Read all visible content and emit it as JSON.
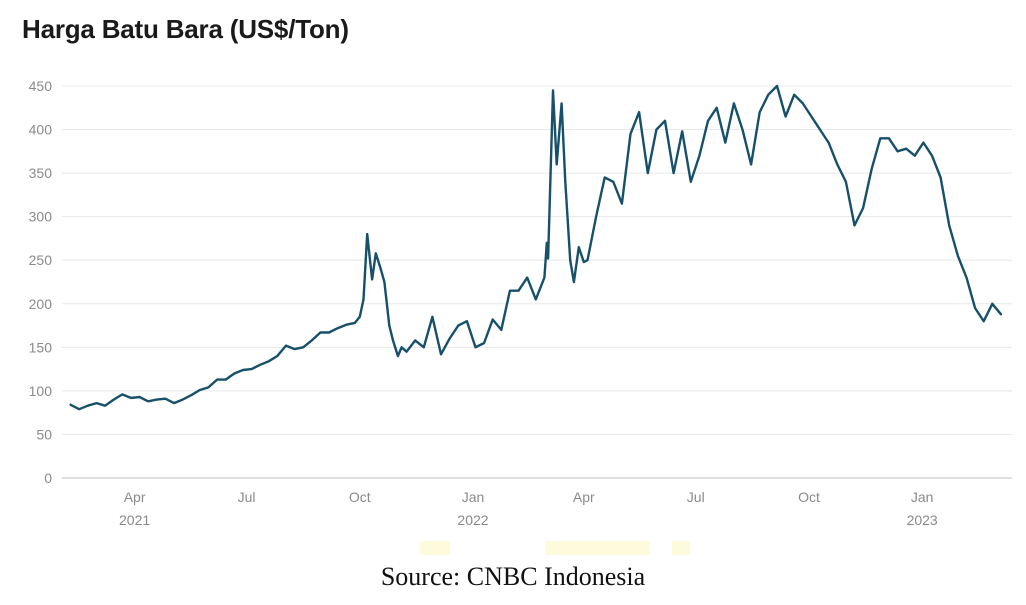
{
  "chart_data": {
    "type": "line",
    "title": "Harga Batu Bara (US$/Ton)",
    "xlabel": "",
    "ylabel": "",
    "ylim": [
      0,
      450
    ],
    "yticks": [
      0,
      50,
      100,
      150,
      200,
      250,
      300,
      350,
      400,
      450
    ],
    "xlim": [
      "2021-02-01",
      "2023-03-15"
    ],
    "xticks": [
      {
        "date": "2021-04-01",
        "label": "Apr",
        "year": "2021"
      },
      {
        "date": "2021-07-01",
        "label": "Jul",
        "year": ""
      },
      {
        "date": "2021-10-01",
        "label": "Oct",
        "year": ""
      },
      {
        "date": "2022-01-01",
        "label": "Jan",
        "year": "2022"
      },
      {
        "date": "2022-04-01",
        "label": "Apr",
        "year": ""
      },
      {
        "date": "2022-07-01",
        "label": "Jul",
        "year": ""
      },
      {
        "date": "2022-10-01",
        "label": "Oct",
        "year": ""
      },
      {
        "date": "2023-01-01",
        "label": "Jan",
        "year": "2023"
      }
    ],
    "grid": true,
    "line_color": "#17506a",
    "series": [
      {
        "x": [
          "2021-02-08",
          "2021-02-15",
          "2021-02-22",
          "2021-03-01",
          "2021-03-08",
          "2021-03-15",
          "2021-03-22",
          "2021-03-29",
          "2021-04-05",
          "2021-04-12",
          "2021-04-19",
          "2021-04-26",
          "2021-05-03",
          "2021-05-10",
          "2021-05-17",
          "2021-05-24",
          "2021-05-31",
          "2021-06-07",
          "2021-06-14",
          "2021-06-21",
          "2021-06-28",
          "2021-07-05",
          "2021-07-12",
          "2021-07-19",
          "2021-07-26",
          "2021-08-02",
          "2021-08-09",
          "2021-08-16",
          "2021-08-23",
          "2021-08-30",
          "2021-09-06",
          "2021-09-13",
          "2021-09-20",
          "2021-09-27",
          "2021-10-01",
          "2021-10-04",
          "2021-10-07",
          "2021-10-11",
          "2021-10-14",
          "2021-10-18",
          "2021-10-21",
          "2021-10-25",
          "2021-10-28",
          "2021-11-01",
          "2021-11-04",
          "2021-11-08",
          "2021-11-15",
          "2021-11-22",
          "2021-11-29",
          "2021-12-06",
          "2021-12-13",
          "2021-12-20",
          "2021-12-27",
          "2022-01-03",
          "2022-01-10",
          "2022-01-17",
          "2022-01-24",
          "2022-01-31",
          "2022-02-07",
          "2022-02-14",
          "2022-02-21",
          "2022-02-28",
          "2022-03-02",
          "2022-03-03",
          "2022-03-07",
          "2022-03-10",
          "2022-03-14",
          "2022-03-17",
          "2022-03-21",
          "2022-03-24",
          "2022-03-28",
          "2022-04-01",
          "2022-04-04",
          "2022-04-11",
          "2022-04-18",
          "2022-04-25",
          "2022-05-02",
          "2022-05-09",
          "2022-05-16",
          "2022-05-23",
          "2022-05-30",
          "2022-06-06",
          "2022-06-13",
          "2022-06-20",
          "2022-06-27",
          "2022-07-04",
          "2022-07-11",
          "2022-07-18",
          "2022-07-25",
          "2022-08-01",
          "2022-08-08",
          "2022-08-15",
          "2022-08-22",
          "2022-08-29",
          "2022-09-05",
          "2022-09-12",
          "2022-09-19",
          "2022-09-26",
          "2022-10-03",
          "2022-10-10",
          "2022-10-17",
          "2022-10-24",
          "2022-10-31",
          "2022-11-07",
          "2022-11-14",
          "2022-11-21",
          "2022-11-28",
          "2022-12-05",
          "2022-12-12",
          "2022-12-19",
          "2022-12-26",
          "2023-01-02",
          "2023-01-09",
          "2023-01-16",
          "2023-01-23",
          "2023-01-30",
          "2023-02-06",
          "2023-02-13",
          "2023-02-20",
          "2023-02-27",
          "2023-03-06"
        ],
        "y": [
          84,
          79,
          83,
          86,
          83,
          90,
          96,
          92,
          93,
          88,
          90,
          91,
          86,
          90,
          95,
          101,
          104,
          113,
          113,
          120,
          124,
          125,
          130,
          134,
          140,
          152,
          148,
          150,
          158,
          167,
          167,
          172,
          176,
          178,
          185,
          205,
          280,
          228,
          258,
          240,
          225,
          175,
          158,
          140,
          150,
          145,
          158,
          150,
          185,
          142,
          160,
          175,
          180,
          150,
          155,
          182,
          170,
          215,
          215,
          230,
          205,
          230,
          270,
          252,
          445,
          360,
          430,
          340,
          250,
          225,
          265,
          248,
          250,
          300,
          345,
          340,
          315,
          395,
          420,
          350,
          400,
          410,
          350,
          398,
          340,
          370,
          410,
          425,
          385,
          430,
          400,
          360,
          420,
          440,
          450,
          415,
          440,
          430,
          415,
          400,
          385,
          360,
          340,
          290,
          310,
          355,
          390,
          390,
          375,
          378,
          370,
          385,
          370,
          345,
          290,
          255,
          230,
          195,
          180,
          200,
          188
        ]
      }
    ]
  },
  "footer": {
    "source": "Source: CNBC Indonesia"
  },
  "colors": {
    "line": "#17506a",
    "grid": "#e8e8e8",
    "tick": "#8a8a8a"
  }
}
